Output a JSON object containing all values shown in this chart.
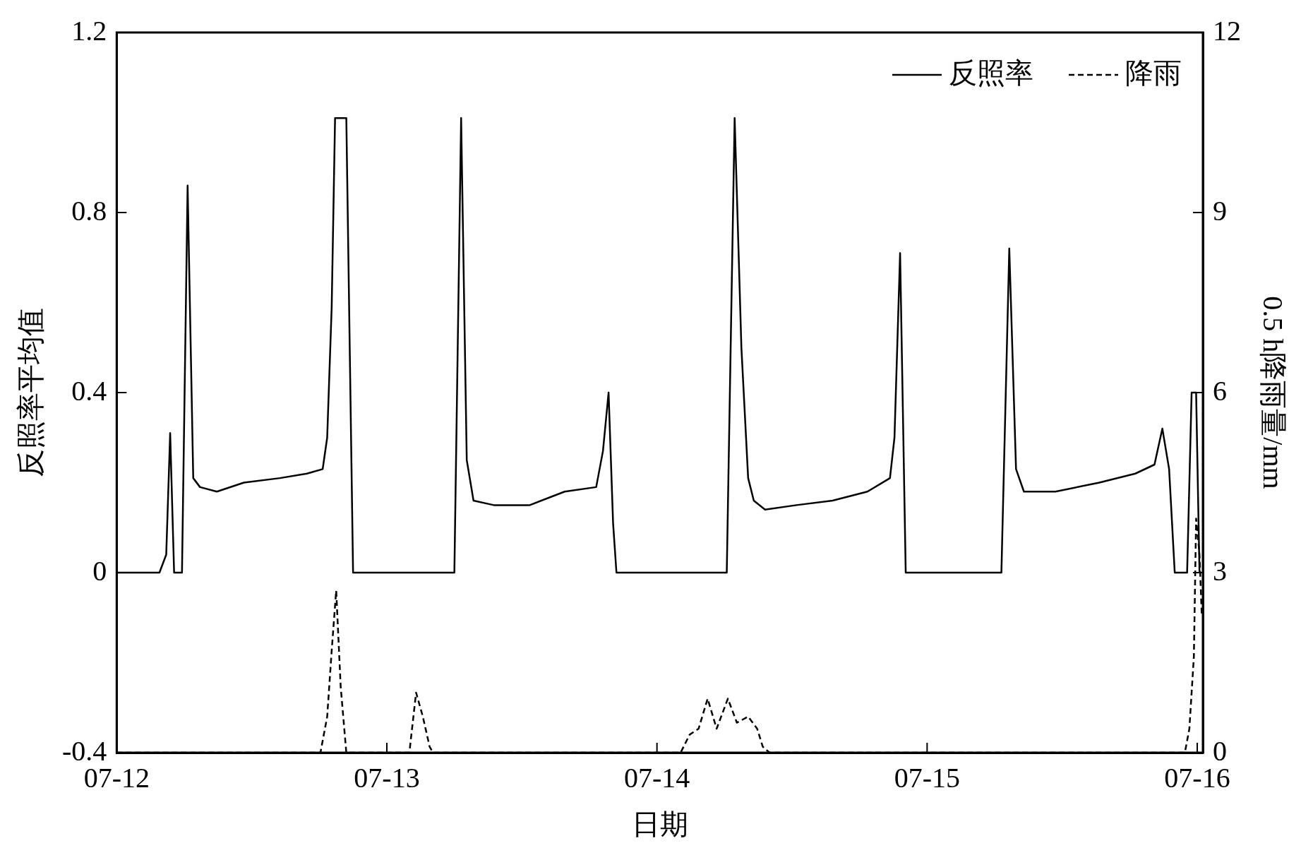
{
  "chart_data": {
    "type": "line",
    "xlabel": "日期",
    "ylabel": "反照率平均值",
    "y2label": "0.5 h降雨量/mm",
    "xlim": [
      "--07-12T00:00",
      "--07-16T00:30"
    ],
    "xticks": [
      {
        "value": "--07-12",
        "label": "07-12"
      },
      {
        "value": "--07-13",
        "label": "07-13"
      },
      {
        "value": "--07-14",
        "label": "07-14"
      },
      {
        "value": "--07-15",
        "label": "07-15"
      },
      {
        "value": "--07-16",
        "label": "07-16"
      }
    ],
    "ylim": [
      -0.4,
      1.2
    ],
    "yticks": [
      -0.4,
      0,
      0.4,
      0.8,
      1.2
    ],
    "y2lim": [
      0,
      12
    ],
    "y2ticks": [
      0,
      3,
      6,
      9,
      12
    ],
    "grid": false,
    "legend": "top right",
    "marker": "none",
    "series": [
      {
        "name": "反照率",
        "color": "#000000",
        "line_style": "solid",
        "x": [
          "--07-12T00:00",
          "--07-12T03:48",
          "--07-12T04:24",
          "--07-12T04:45",
          "--07-12T05:06",
          "--07-12T05:48",
          "--07-12T06:18",
          "--07-12T06:48",
          "--07-12T07:24",
          "--07-12T08:54",
          "--07-12T11:18",
          "--07-12T14:30",
          "--07-12T16:54",
          "--07-12T18:18",
          "--07-12T18:42",
          "--07-12T19:06",
          "--07-12T19:24",
          "--07-12T20:24",
          "--07-12T21:00",
          "--07-13T06:00",
          "--07-13T06:36",
          "--07-13T07:06",
          "--07-13T07:42",
          "--07-13T09:30",
          "--07-13T12:42",
          "--07-13T15:48",
          "--07-13T18:36",
          "--07-13T19:12",
          "--07-13T19:42",
          "--07-13T20:06",
          "--07-13T20:24",
          "--07-14T06:12",
          "--07-14T06:54",
          "--07-14T07:30",
          "--07-14T08:06",
          "--07-14T08:36",
          "--07-14T09:36",
          "--07-14T12:24",
          "--07-14T15:36",
          "--07-14T18:42",
          "--07-14T20:42",
          "--07-14T21:06",
          "--07-14T21:36",
          "--07-14T22:06",
          "--07-15T06:36",
          "--07-15T07:18",
          "--07-15T07:54",
          "--07-15T08:36",
          "--07-15T11:24",
          "--07-15T15:18",
          "--07-15T18:30",
          "--07-15T20:12",
          "--07-15T20:54",
          "--07-15T21:30",
          "--07-15T22:00",
          "--07-15T23:06",
          "--07-15T23:30",
          "--07-15T23:54",
          "--07-16T00:12"
        ],
        "values": [
          0,
          0,
          0.04,
          0.31,
          0,
          0,
          0.86,
          0.21,
          0.19,
          0.18,
          0.2,
          0.21,
          0.22,
          0.23,
          0.3,
          0.59,
          1.01,
          1.01,
          0,
          0,
          1.01,
          0.25,
          0.16,
          0.15,
          0.15,
          0.18,
          0.19,
          0.27,
          0.4,
          0.11,
          0,
          0,
          1.01,
          0.5,
          0.21,
          0.16,
          0.14,
          0.15,
          0.16,
          0.18,
          0.21,
          0.3,
          0.71,
          0,
          0,
          0.72,
          0.23,
          0.18,
          0.18,
          0.2,
          0.22,
          0.24,
          0.32,
          0.23,
          0,
          0,
          0.4,
          0.4,
          0
        ]
      },
      {
        "name": "降雨",
        "color": "#000000",
        "line_style": "dashed",
        "axis": "y2",
        "x": [
          "--07-12T00:00",
          "--07-12T18:06",
          "--07-12T18:42",
          "--07-12T19:06",
          "--07-12T19:30",
          "--07-12T19:54",
          "--07-12T20:24",
          "--07-13T02:00",
          "--07-13T02:36",
          "--07-13T03:12",
          "--07-13T03:48",
          "--07-13T04:06",
          "--07-14T02:06",
          "--07-14T02:54",
          "--07-14T03:42",
          "--07-14T04:30",
          "--07-14T05:18",
          "--07-14T06:18",
          "--07-14T07:06",
          "--07-14T08:06",
          "--07-14T08:54",
          "--07-14T09:24",
          "--07-14T10:00",
          "--07-15T22:54",
          "--07-15T23:18",
          "--07-15T23:42",
          "--07-15T23:54",
          "--07-16T00:12",
          "--07-16T00:24"
        ],
        "values": [
          0,
          0,
          0.6,
          1.7,
          2.7,
          1.1,
          0,
          0,
          1.0,
          0.6,
          0.1,
          0,
          0,
          0.3,
          0.4,
          0.9,
          0.4,
          0.9,
          0.5,
          0.6,
          0.4,
          0.1,
          0,
          0,
          0.4,
          1.6,
          3.9,
          3.3,
          2.3
        ]
      }
    ]
  }
}
